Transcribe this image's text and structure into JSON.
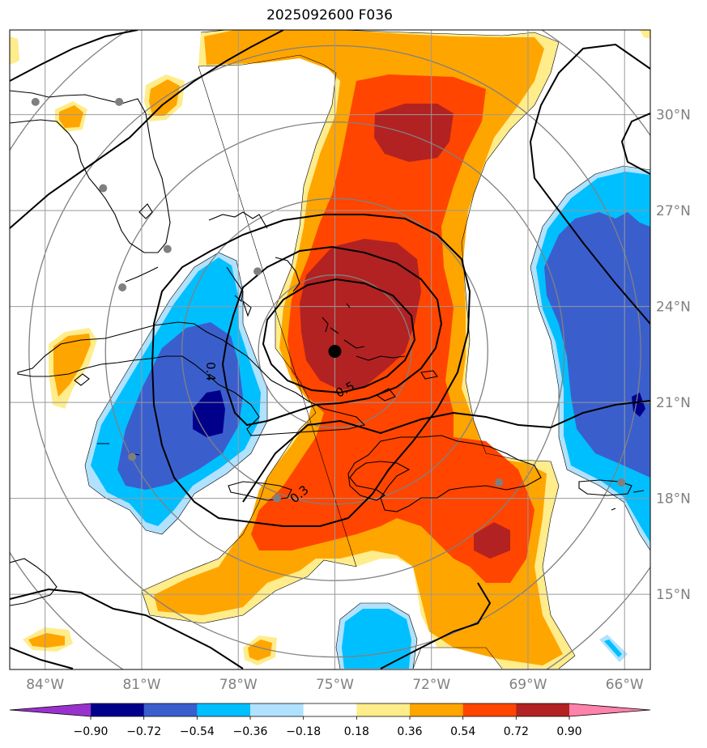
{
  "title": "2025092600 F036",
  "chart_data": {
    "type": "heatmap",
    "title": "2025092600 F036",
    "x_tick_labels": [
      "84°W",
      "81°W",
      "78°W",
      "75°W",
      "72°W",
      "69°W",
      "66°W"
    ],
    "x_ticks_deg": [
      -84,
      -81,
      -78,
      -75,
      -72,
      -69,
      -66
    ],
    "y_tick_labels": [
      "15°N",
      "18°N",
      "21°N",
      "24°N",
      "27°N",
      "30°N"
    ],
    "y_ticks_deg": [
      15,
      18,
      21,
      24,
      27,
      30
    ],
    "xlim_deg": [
      -85.1,
      -65.2
    ],
    "ylim_deg": [
      12.65,
      32.65
    ],
    "grid": true,
    "colorbar": {
      "orientation": "horizontal",
      "extend": "both",
      "bounds": [
        -0.9,
        -0.72,
        -0.54,
        -0.36,
        -0.18,
        0.18,
        0.36,
        0.54,
        0.72,
        0.9
      ],
      "tick_labels": [
        "−0.90",
        "−0.72",
        "−0.54",
        "−0.36",
        "−0.18",
        "0.18",
        "0.36",
        "0.54",
        "0.72",
        "0.90"
      ],
      "colors": [
        "#9932cc",
        "#00008b",
        "#3a5fcd",
        "#00bfff",
        "#b0e2ff",
        "#ffffff",
        "#ffec8b",
        "#ffa500",
        "#ff4500",
        "#b22222",
        "#ff82ab"
      ]
    },
    "center_marker": {
      "lon": -75.0,
      "lat": 22.6
    },
    "range_rings_deg": [
      2.5,
      5,
      7.5,
      10,
      12.5
    ],
    "contour_labels": [
      "0.5",
      "0.4",
      "0.3"
    ],
    "station_dots": [
      {
        "lon": -84.3,
        "lat": 30.4
      },
      {
        "lon": -81.7,
        "lat": 30.4
      },
      {
        "lon": -82.2,
        "lat": 27.7
      },
      {
        "lon": -80.2,
        "lat": 25.8
      },
      {
        "lon": -81.6,
        "lat": 24.6
      },
      {
        "lon": -77.4,
        "lat": 25.1
      },
      {
        "lon": -81.3,
        "lat": 19.3
      },
      {
        "lon": -76.8,
        "lat": 18.0
      },
      {
        "lon": -69.9,
        "lat": 18.5
      },
      {
        "lon": -66.1,
        "lat": 18.5
      }
    ]
  }
}
